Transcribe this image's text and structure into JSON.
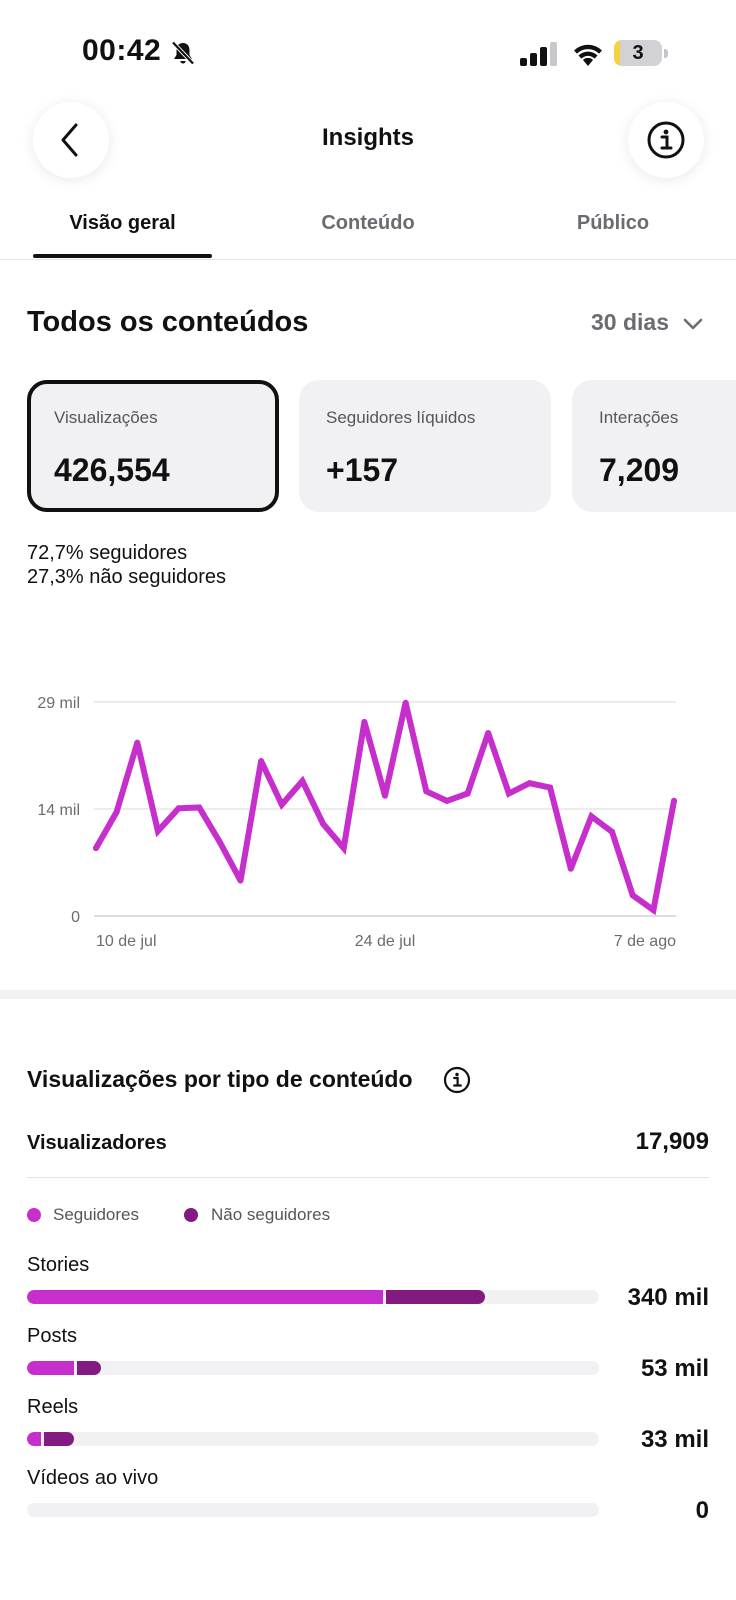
{
  "status_bar": {
    "time": "00:42",
    "battery": "3"
  },
  "nav": {
    "title": "Insights"
  },
  "tabs": [
    {
      "label": "Visão geral",
      "active": true
    },
    {
      "label": "Conteúdo",
      "active": false
    },
    {
      "label": "Público",
      "active": false
    }
  ],
  "overview": {
    "title": "Todos os conteúdos",
    "period": "30 dias"
  },
  "metrics": [
    {
      "label": "Visualizações",
      "value": "426,554",
      "selected": true
    },
    {
      "label": "Seguidores líquidos",
      "value": "+157",
      "selected": false
    },
    {
      "label": "Interações",
      "value": "7,209",
      "selected": false
    }
  ],
  "audience_split": [
    {
      "percent": "72,7%",
      "label": "seguidores"
    },
    {
      "percent": "27,3%",
      "label": "não seguidores"
    }
  ],
  "chart_data": {
    "type": "line",
    "y_ticks": [
      "29 mil",
      "14 mil",
      "0"
    ],
    "y_tick_values": [
      29000,
      14500,
      0
    ],
    "x_tick_labels": [
      "10 de jul",
      "24 de jul",
      "7 de ago"
    ],
    "x_tick_index": [
      0,
      14,
      28
    ],
    "ylim": [
      0,
      29000
    ],
    "grid": true,
    "color": "#c62fcc",
    "series": [
      {
        "values": [
          9200,
          14100,
          23500,
          11500,
          14600,
          14700,
          10000,
          4800,
          21000,
          15100,
          18300,
          12500,
          9200,
          26300,
          16300,
          28900,
          16900,
          15600,
          16600,
          24800,
          16600,
          18000,
          17400,
          6400,
          13500,
          11400,
          2800,
          800,
          15600
        ]
      }
    ]
  },
  "content_types": {
    "title": "Visualizações por tipo de conteúdo",
    "viewers_label": "Visualizadores",
    "viewers_value": "17,909",
    "legend": [
      {
        "label": "Seguidores",
        "color": "#c62fcc"
      },
      {
        "label": "Não seguidores",
        "color": "#821a82"
      }
    ],
    "rows": [
      {
        "label": "Stories",
        "value": "340 mil",
        "followers_fraction": 0.622,
        "non_followers_fraction": 0.178
      },
      {
        "label": "Posts",
        "value": "53 mil",
        "followers_fraction": 0.082,
        "non_followers_fraction": 0.047
      },
      {
        "label": "Reels",
        "value": "33 mil",
        "followers_fraction": 0.025,
        "non_followers_fraction": 0.057
      },
      {
        "label": "Vídeos ao vivo",
        "value": "0",
        "followers_fraction": 0,
        "non_followers_fraction": 0
      }
    ]
  }
}
